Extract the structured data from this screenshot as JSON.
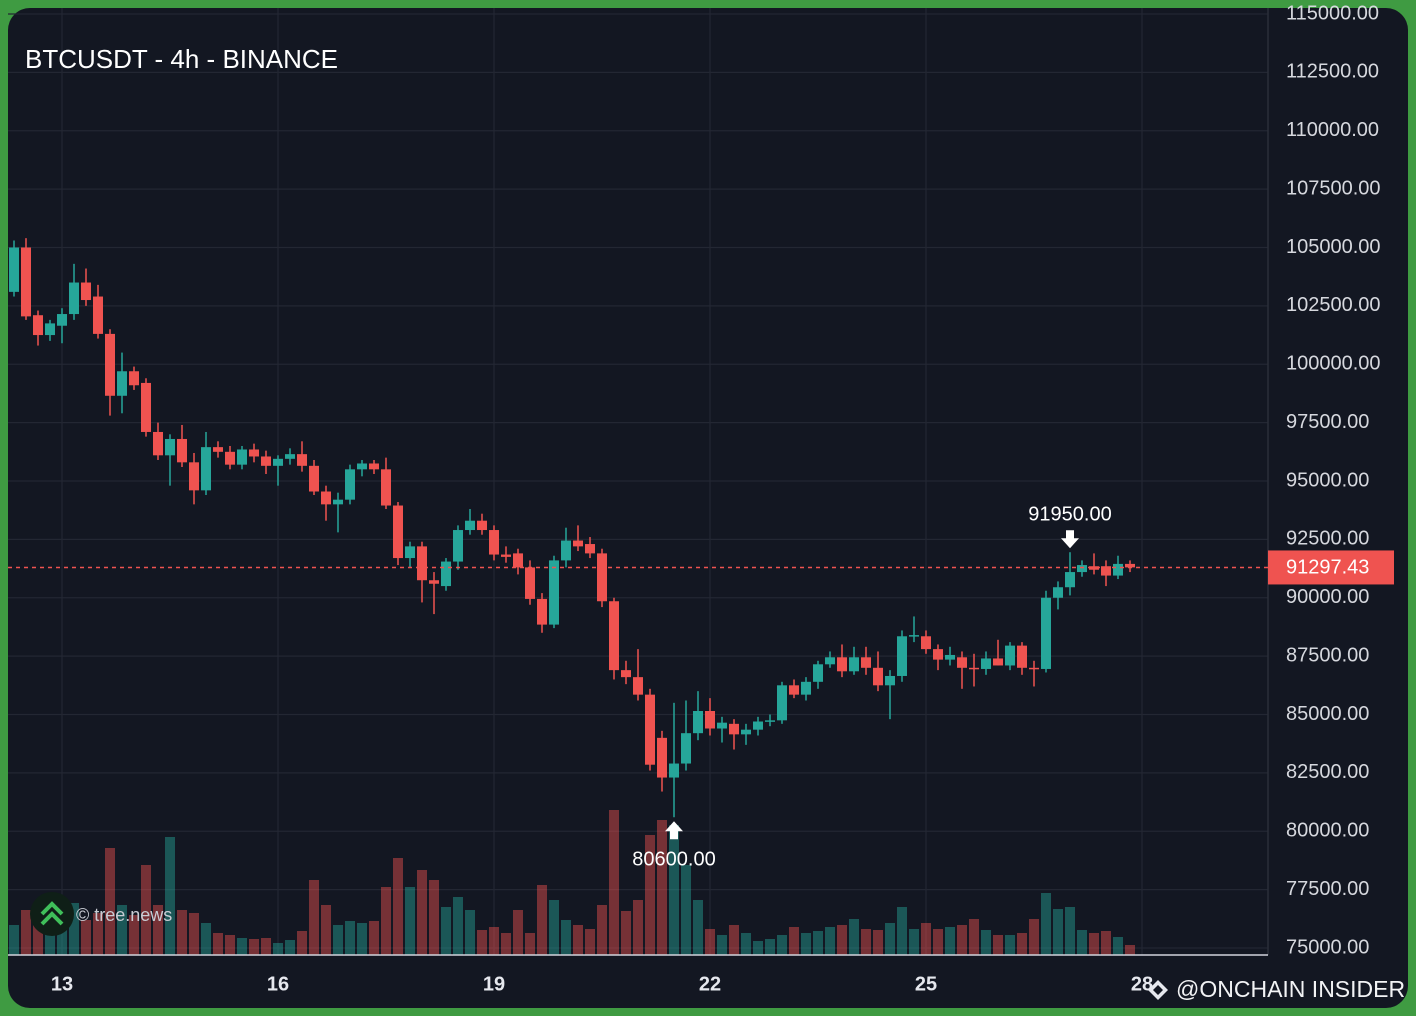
{
  "chart_data": {
    "type": "candlestick",
    "title": "BTCUSDT - 4h - BINANCE",
    "categories": [
      null,
      null,
      null,
      null,
      "13",
      null,
      null,
      null,
      null,
      null,
      null,
      null,
      null,
      null,
      null,
      null,
      null,
      null,
      null,
      null,
      null,
      null,
      "16",
      null,
      null,
      null,
      null,
      null,
      null,
      null,
      null,
      null,
      null,
      null,
      null,
      null,
      null,
      null,
      null,
      null,
      "19",
      null,
      null,
      null,
      null,
      null,
      null,
      null,
      null,
      null,
      null,
      null,
      null,
      null,
      null,
      null,
      null,
      null,
      "22",
      null,
      null,
      null,
      null,
      null,
      null,
      null,
      null,
      null,
      null,
      null,
      null,
      null,
      null,
      null,
      null,
      null,
      "25",
      null,
      null,
      null,
      null,
      null,
      null,
      null,
      null,
      null,
      null,
      null,
      null,
      null,
      null,
      null,
      null,
      null,
      "28"
    ],
    "ohlc": [
      [
        103100,
        105300,
        102900,
        105000
      ],
      [
        105000,
        105400,
        101900,
        102050
      ],
      [
        102100,
        102300,
        100800,
        101250
      ],
      [
        101250,
        101900,
        101000,
        101750
      ],
      [
        101650,
        102400,
        100900,
        102150
      ],
      [
        102150,
        104300,
        101900,
        103500
      ],
      [
        103500,
        104100,
        102500,
        102750
      ],
      [
        102900,
        103400,
        101100,
        101300
      ],
      [
        101300,
        101500,
        97800,
        98650
      ],
      [
        98650,
        100500,
        97900,
        99700
      ],
      [
        99700,
        99900,
        98900,
        99100
      ],
      [
        99200,
        99400,
        96900,
        97100
      ],
      [
        97100,
        97500,
        95900,
        96100
      ],
      [
        96100,
        97000,
        94800,
        96800
      ],
      [
        96800,
        97400,
        95600,
        95800
      ],
      [
        95800,
        96200,
        94000,
        94600
      ],
      [
        94600,
        97100,
        94400,
        96450
      ],
      [
        96450,
        96700,
        96000,
        96250
      ],
      [
        96250,
        96500,
        95500,
        95700
      ],
      [
        95700,
        96500,
        95500,
        96350
      ],
      [
        96350,
        96600,
        95800,
        96050
      ],
      [
        96050,
        96300,
        95300,
        95650
      ],
      [
        95650,
        96100,
        94800,
        95950
      ],
      [
        95950,
        96400,
        95700,
        96150
      ],
      [
        96150,
        96700,
        95400,
        95650
      ],
      [
        95650,
        95900,
        94400,
        94550
      ],
      [
        94550,
        94800,
        93300,
        94000
      ],
      [
        94000,
        94500,
        92800,
        94200
      ],
      [
        94200,
        95700,
        94000,
        95500
      ],
      [
        95500,
        95900,
        95200,
        95750
      ],
      [
        95750,
        95900,
        95300,
        95500
      ],
      [
        95500,
        96000,
        93800,
        93950
      ],
      [
        93950,
        94100,
        91400,
        91700
      ],
      [
        91700,
        92400,
        91300,
        92200
      ],
      [
        92200,
        92400,
        89800,
        90750
      ],
      [
        90750,
        91100,
        89300,
        90600
      ],
      [
        90500,
        91700,
        90300,
        91550
      ],
      [
        91550,
        93100,
        91200,
        92900
      ],
      [
        92900,
        93800,
        92700,
        93300
      ],
      [
        93300,
        93600,
        92700,
        92900
      ],
      [
        92900,
        93100,
        91600,
        91850
      ],
      [
        91850,
        92200,
        91500,
        91750
      ],
      [
        91900,
        92100,
        91000,
        91300
      ],
      [
        91300,
        91600,
        89700,
        89950
      ],
      [
        89950,
        90200,
        88500,
        88850
      ],
      [
        88850,
        91800,
        88700,
        91600
      ],
      [
        91600,
        93000,
        91300,
        92450
      ],
      [
        92450,
        93100,
        92000,
        92200
      ],
      [
        92300,
        92600,
        91700,
        91900
      ],
      [
        91900,
        92100,
        89600,
        89850
      ],
      [
        89850,
        90000,
        86500,
        86900
      ],
      [
        86900,
        87300,
        86300,
        86600
      ],
      [
        86600,
        87800,
        85600,
        85850
      ],
      [
        85850,
        86100,
        82600,
        82850
      ],
      [
        84000,
        84300,
        81700,
        82300
      ],
      [
        82300,
        85500,
        80600,
        82900
      ],
      [
        82900,
        85600,
        82600,
        84200
      ],
      [
        84200,
        86000,
        83900,
        85150
      ],
      [
        85150,
        85700,
        84100,
        84400
      ],
      [
        84400,
        84900,
        83800,
        84650
      ],
      [
        84600,
        84800,
        83500,
        84150
      ],
      [
        84150,
        84600,
        83700,
        84350
      ],
      [
        84350,
        84900,
        84100,
        84700
      ],
      [
        84700,
        85000,
        84500,
        84750
      ],
      [
        84750,
        86400,
        84600,
        86250
      ],
      [
        86250,
        86500,
        85700,
        85850
      ],
      [
        85850,
        86600,
        85600,
        86400
      ],
      [
        86400,
        87300,
        86100,
        87150
      ],
      [
        87150,
        87700,
        87000,
        87450
      ],
      [
        87450,
        88000,
        86600,
        86850
      ],
      [
        86850,
        87900,
        86700,
        87450
      ],
      [
        87450,
        87900,
        86700,
        87000
      ],
      [
        87000,
        87700,
        86000,
        86250
      ],
      [
        86250,
        86900,
        84800,
        86650
      ],
      [
        86650,
        88600,
        86400,
        88350
      ],
      [
        88350,
        89200,
        88100,
        88400
      ],
      [
        88350,
        88600,
        87600,
        87800
      ],
      [
        87800,
        88000,
        86900,
        87350
      ],
      [
        87350,
        87900,
        87100,
        87550
      ],
      [
        87450,
        87700,
        86100,
        87000
      ],
      [
        87000,
        87600,
        86200,
        86950
      ],
      [
        86950,
        87700,
        86700,
        87400
      ],
      [
        87400,
        88200,
        87100,
        87100
      ],
      [
        87100,
        88100,
        86900,
        87950
      ],
      [
        87950,
        88100,
        86700,
        87000
      ],
      [
        87000,
        87300,
        86200,
        86950
      ],
      [
        86950,
        90300,
        86800,
        90000
      ],
      [
        90000,
        90700,
        89500,
        90450
      ],
      [
        90450,
        91950,
        90100,
        91100
      ],
      [
        91100,
        91600,
        90900,
        91400
      ],
      [
        91350,
        91900,
        91000,
        91200
      ],
      [
        91350,
        91600,
        90500,
        90950
      ],
      [
        90950,
        91800,
        90800,
        91450
      ],
      [
        91450,
        91600,
        91100,
        91300
      ],
      null
    ],
    "volume": [
      30,
      45,
      37,
      40,
      38,
      52,
      35,
      42,
      107,
      50,
      40,
      90,
      50,
      118,
      45,
      42,
      32,
      22,
      20,
      17,
      16,
      17,
      12,
      15,
      24,
      75,
      50,
      30,
      34,
      32,
      34,
      68,
      97,
      68,
      85,
      75,
      48,
      58,
      45,
      25,
      28,
      22,
      45,
      22,
      70,
      55,
      35,
      30,
      26,
      50,
      145,
      44,
      55,
      120,
      135,
      130,
      90,
      55,
      26,
      20,
      30,
      22,
      14,
      16,
      20,
      28,
      22,
      24,
      28,
      30,
      36,
      26,
      25,
      32,
      48,
      26,
      32,
      26,
      28,
      30,
      36,
      25,
      20,
      20,
      22,
      36,
      62,
      46,
      48,
      25,
      22,
      24,
      18,
      10,
      null
    ],
    "up_color": "#26a69a",
    "down_color": "#ef5350",
    "ylim": [
      75000,
      115000
    ],
    "yticks": [
      {
        "value": 75000,
        "label": "75000.00"
      },
      {
        "value": 77500,
        "label": "77500.00"
      },
      {
        "value": 80000,
        "label": "80000.00"
      },
      {
        "value": 82500,
        "label": "82500.00"
      },
      {
        "value": 85000,
        "label": "85000.00"
      },
      {
        "value": 87500,
        "label": "87500.00"
      },
      {
        "value": 90000,
        "label": "90000.00"
      },
      {
        "value": 92500,
        "label": "92500.00"
      },
      {
        "value": 95000,
        "label": "95000.00"
      },
      {
        "value": 97500,
        "label": "97500.00"
      },
      {
        "value": 100000,
        "label": "100000.00"
      },
      {
        "value": 102500,
        "label": "102500.00"
      },
      {
        "value": 105000,
        "label": "105000.00"
      },
      {
        "value": 107500,
        "label": "107500.00"
      },
      {
        "value": 110000,
        "label": "110000.00"
      },
      {
        "value": 112500,
        "label": "112500.00"
      },
      {
        "value": 115000,
        "label": "115000.00"
      }
    ],
    "grid": true,
    "last_price": 91297.43,
    "annotations": [
      {
        "value": 91950,
        "label": "91950.00",
        "kind": "high"
      },
      {
        "value": 80600,
        "label": "80600.00",
        "kind": "low"
      }
    ]
  },
  "watermarks": {
    "source": "© tree.news",
    "author": "@ONCHAIN INSIDER"
  }
}
